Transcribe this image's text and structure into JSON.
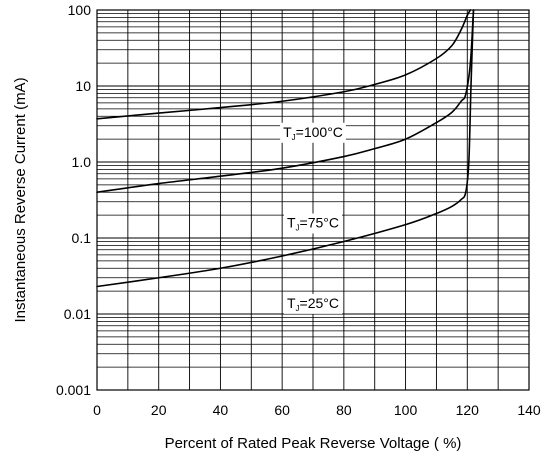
{
  "chart_data": {
    "type": "line",
    "title": "",
    "xlabel": "Percent of Rated Peak Reverse Voltage ( %)",
    "ylabel": "Instantaneous Reverse Current (mA)",
    "xlim": [
      0,
      140
    ],
    "ylim": [
      0.001,
      100
    ],
    "yscale": "log",
    "grid": true,
    "x_ticks": [
      0,
      20,
      40,
      60,
      80,
      100,
      120,
      140
    ],
    "x_tick_labels": [
      "0",
      "20",
      "40",
      "60",
      "80",
      "100",
      "120",
      "140"
    ],
    "y_ticks": [
      0.001,
      0.01,
      0.1,
      1,
      10,
      100
    ],
    "y_tick_labels": [
      "0.001",
      "0.01",
      "0.1",
      "1.0",
      "10",
      "100"
    ],
    "series": [
      {
        "name": "TJ=100°C",
        "label_main": "T",
        "label_sub": "J",
        "label_rest": "=100°C",
        "label_at": [
          70,
          2.5
        ],
        "color": "#000000",
        "points": [
          [
            0,
            3.7
          ],
          [
            20,
            4.4
          ],
          [
            40,
            5.2
          ],
          [
            60,
            6.3
          ],
          [
            80,
            8.4
          ],
          [
            90,
            10.5
          ],
          [
            100,
            14
          ],
          [
            110,
            23
          ],
          [
            115,
            34
          ],
          [
            118,
            55
          ],
          [
            120,
            85
          ],
          [
            121,
            100
          ]
        ]
      },
      {
        "name": "TJ=75°C",
        "label_main": "T",
        "label_sub": "J",
        "label_rest": "=75°C",
        "label_at": [
          70,
          0.16
        ],
        "color": "#000000",
        "points": [
          [
            0,
            0.4
          ],
          [
            20,
            0.52
          ],
          [
            40,
            0.65
          ],
          [
            60,
            0.83
          ],
          [
            80,
            1.18
          ],
          [
            90,
            1.5
          ],
          [
            100,
            2.0
          ],
          [
            110,
            3.3
          ],
          [
            115,
            4.5
          ],
          [
            118,
            6.3
          ],
          [
            119.5,
            7.8
          ],
          [
            121,
            20
          ],
          [
            122,
            100
          ]
        ]
      },
      {
        "name": "TJ=25°C",
        "label_main": "T",
        "label_sub": "J",
        "label_rest": "=25°C",
        "label_at": [
          70,
          0.014
        ],
        "color": "#000000",
        "points": [
          [
            0,
            0.023
          ],
          [
            20,
            0.03
          ],
          [
            40,
            0.04
          ],
          [
            60,
            0.058
          ],
          [
            80,
            0.09
          ],
          [
            100,
            0.15
          ],
          [
            110,
            0.21
          ],
          [
            115,
            0.26
          ],
          [
            118,
            0.32
          ],
          [
            119.5,
            0.4
          ],
          [
            120.5,
            1.0
          ],
          [
            121.2,
            10
          ],
          [
            122,
            100
          ]
        ]
      }
    ]
  }
}
